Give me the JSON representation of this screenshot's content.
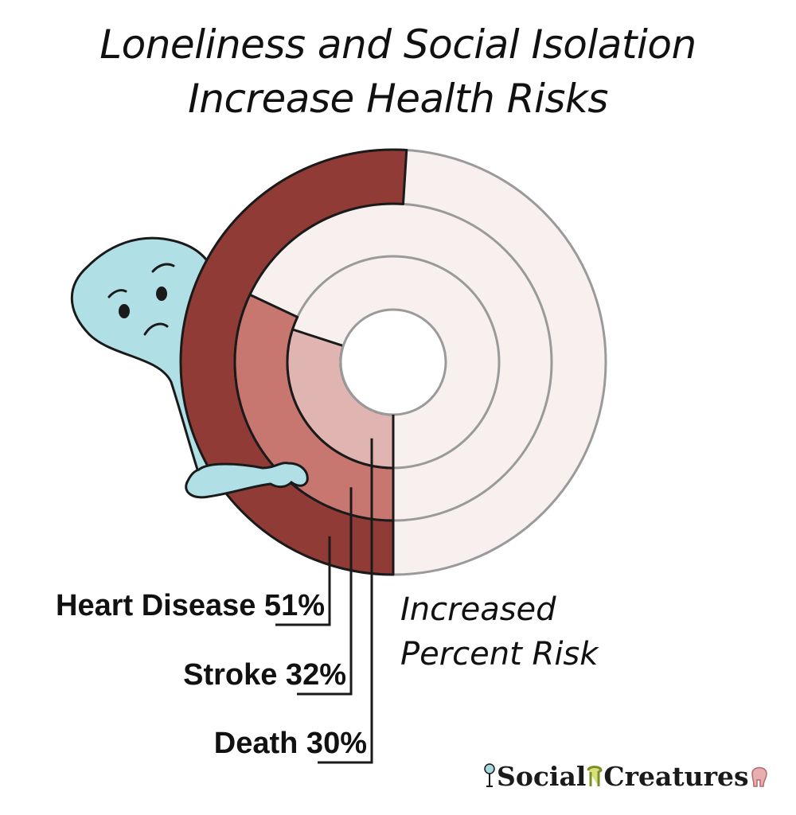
{
  "chart_data": {
    "type": "radial-bar",
    "title": [
      "Loneliness and Social Isolation",
      "Increase Health Risks"
    ],
    "axis_note": [
      "Increased",
      "Percent Risk"
    ],
    "max_value": 100,
    "series": [
      {
        "label": "Heart Disease",
        "value": 51,
        "value_text": "51%",
        "color": "#913b37"
      },
      {
        "label": "Stroke",
        "value": 32,
        "value_text": "32%",
        "color": "#c87770"
      },
      {
        "label": "Death",
        "value": 30,
        "value_text": "30%",
        "color": "#e0b5b1"
      }
    ],
    "track_color": "#f7f0ef",
    "center_color": "#ffffff"
  },
  "brand": {
    "word1": "Social",
    "word2": "Creatures"
  },
  "colors": {
    "mascot": "#b0e0e6",
    "outline": "#1a1a1a"
  },
  "icons": [
    "sad-blob-mascot",
    "brand-figure-icon"
  ]
}
